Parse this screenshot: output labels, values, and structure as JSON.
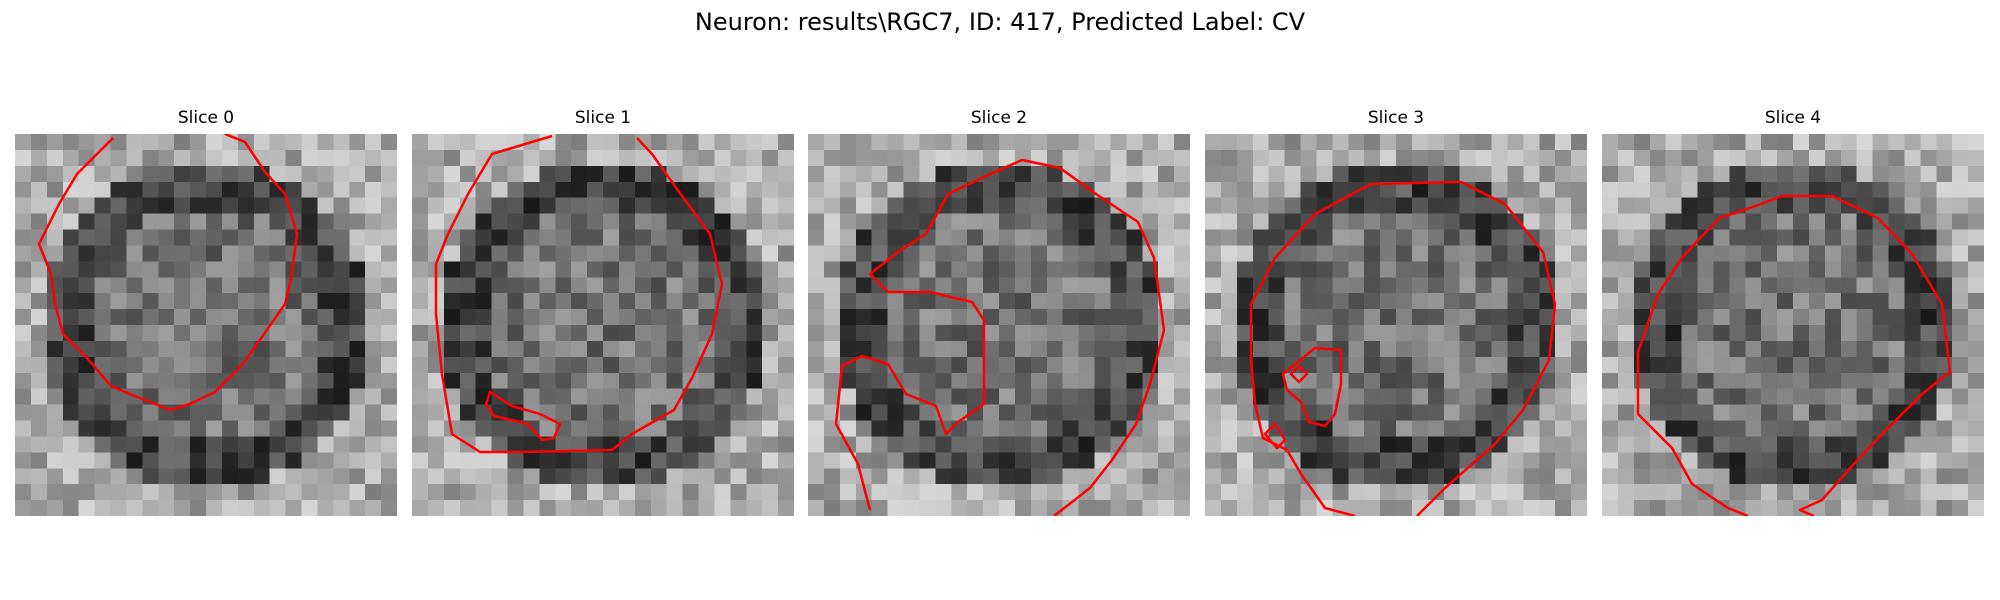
{
  "figure": {
    "title": "Neuron: results\\RGC7, ID: 417, Predicted Label: CV"
  },
  "panels": [
    {
      "title": "Slice 0"
    },
    {
      "title": "Slice 1"
    },
    {
      "title": "Slice 2"
    },
    {
      "title": "Slice 3"
    },
    {
      "title": "Slice 4"
    }
  ],
  "colors": {
    "contour": "#ff0000",
    "image_colormap": "gray"
  }
}
